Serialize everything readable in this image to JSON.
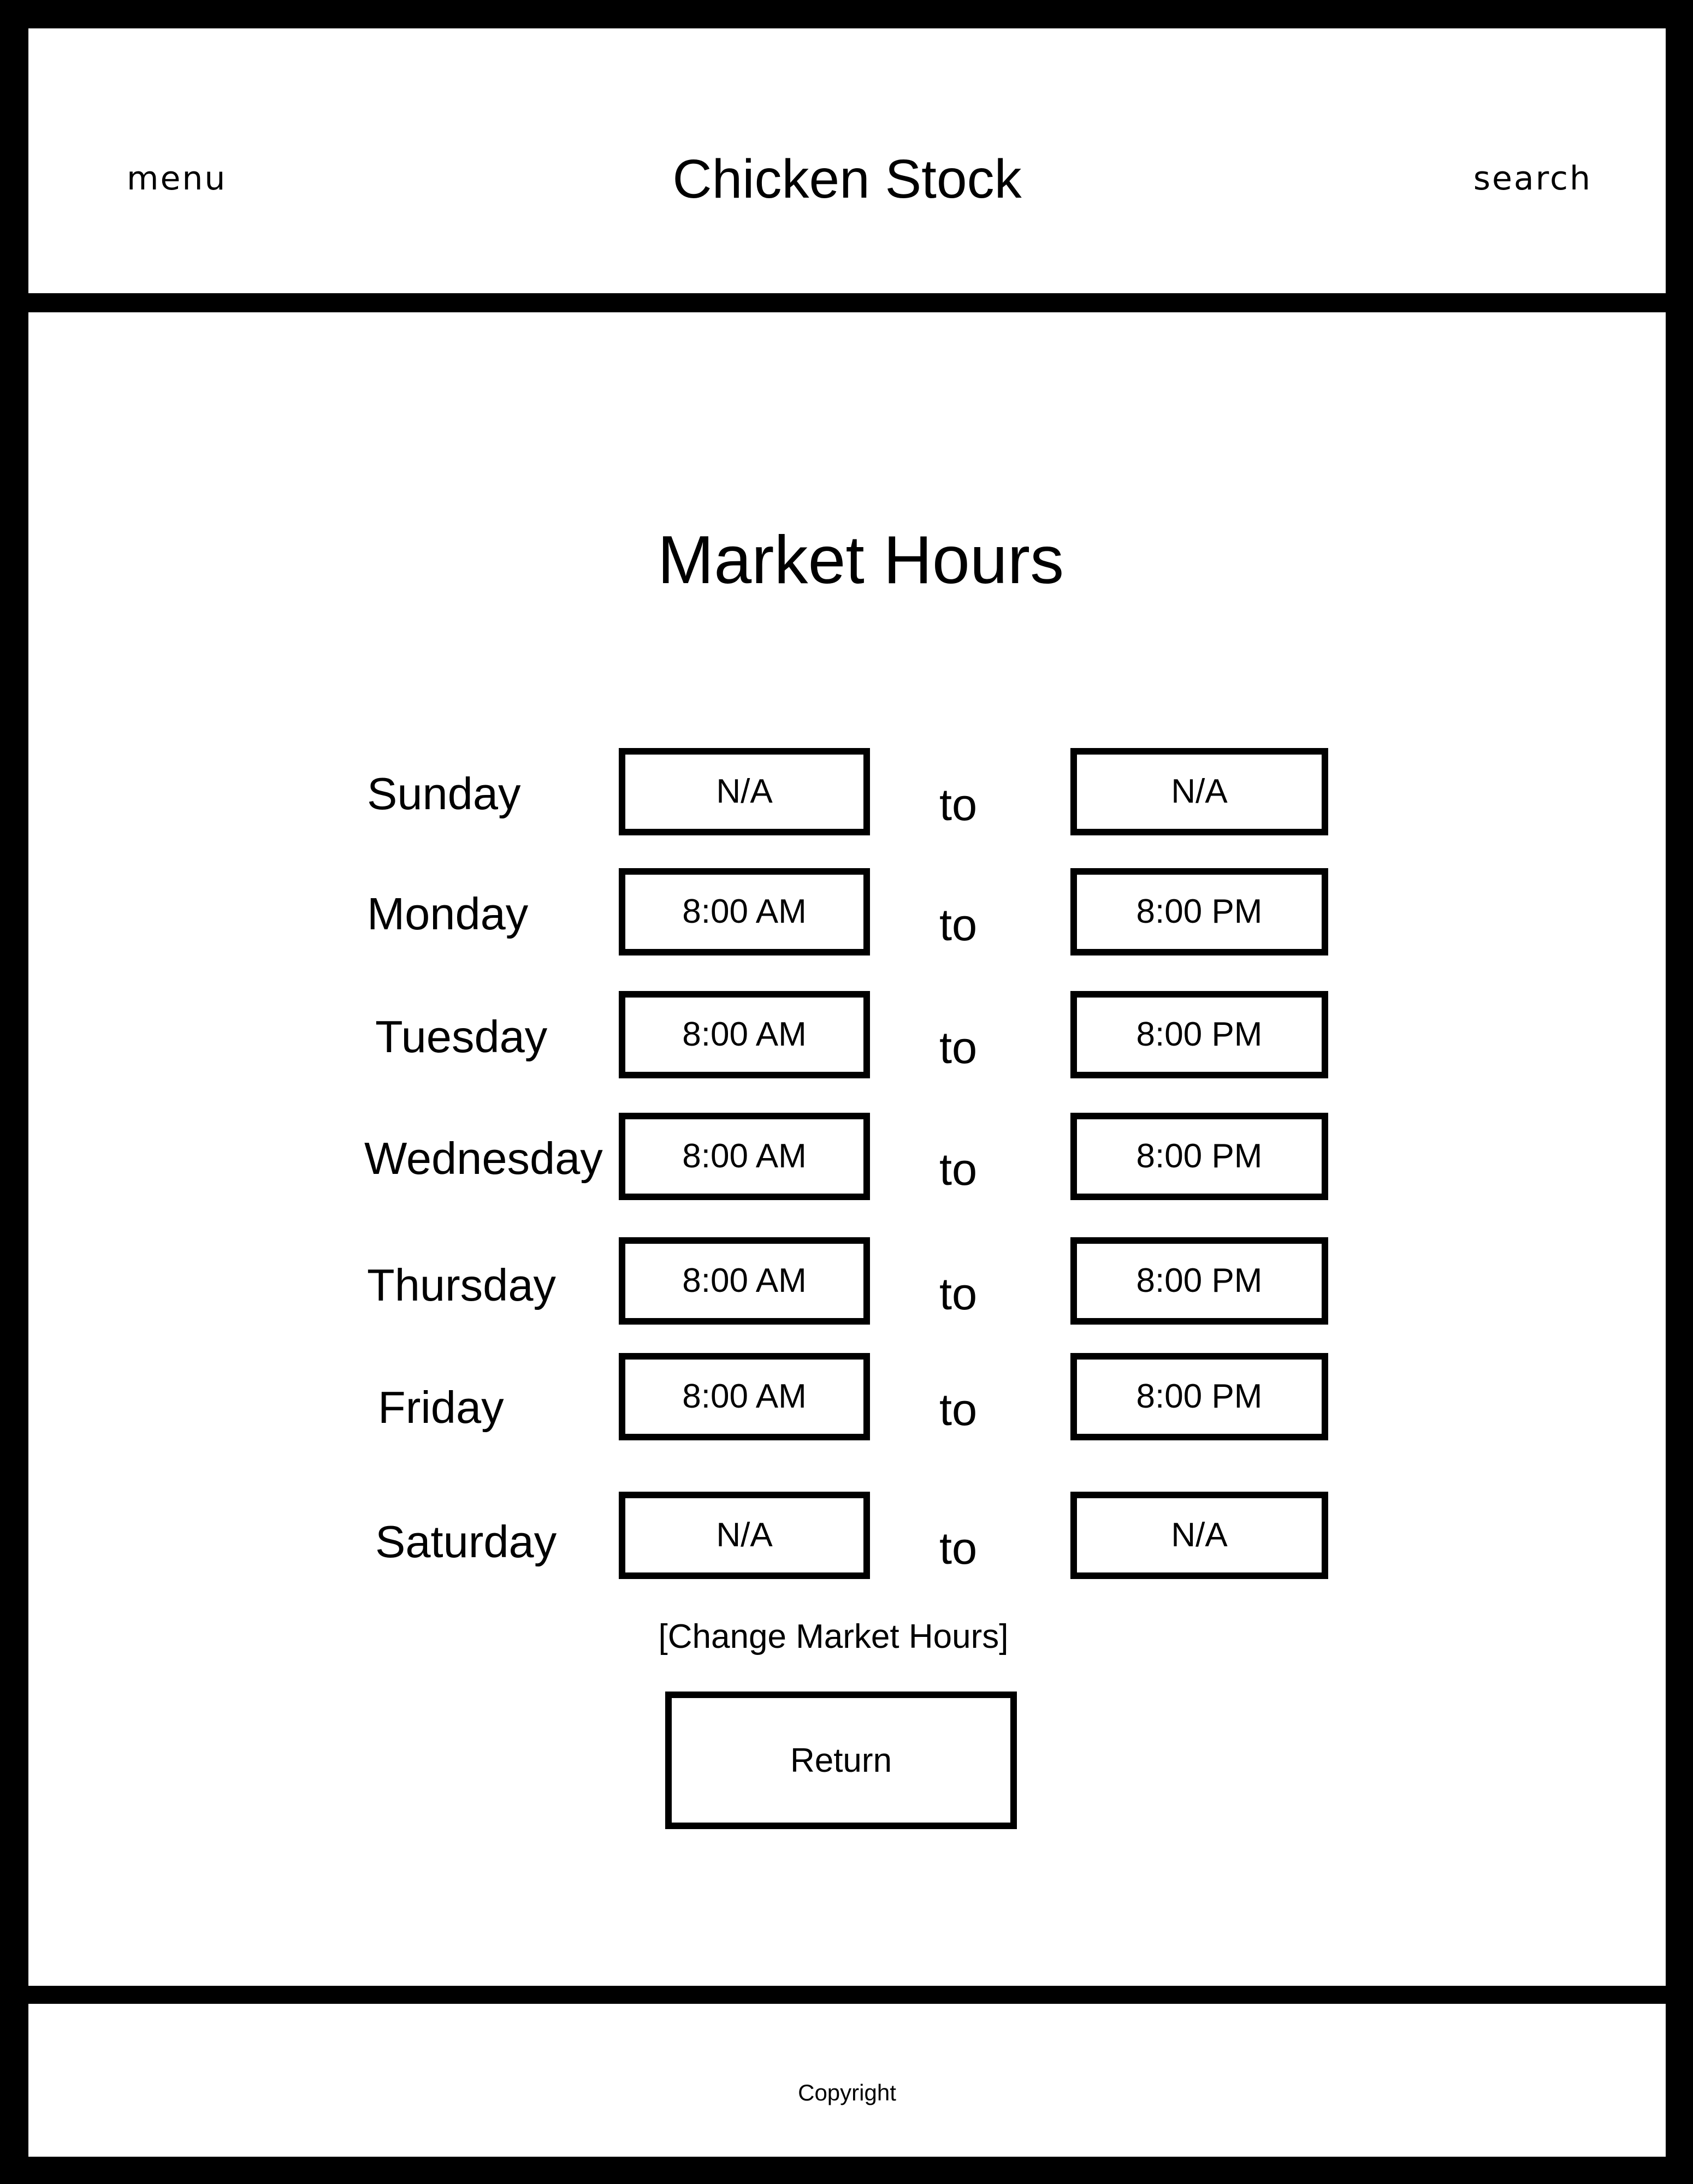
{
  "header": {
    "menu_label": "menu",
    "title": "Chicken Stock",
    "search_label": "search"
  },
  "main": {
    "page_title": "Market Hours",
    "separator_label": "to",
    "days": [
      {
        "day": "Sunday",
        "open": "N/A",
        "close": "N/A"
      },
      {
        "day": "Monday",
        "open": "8:00 AM",
        "close": "8:00 PM"
      },
      {
        "day": "Tuesday",
        "open": "8:00 AM",
        "close": "8:00 PM"
      },
      {
        "day": "Wednesday",
        "open": "8:00 AM",
        "close": "8:00 PM"
      },
      {
        "day": "Thursday",
        "open": "8:00 AM",
        "close": "8:00 PM"
      },
      {
        "day": "Friday",
        "open": "8:00 AM",
        "close": "8:00 PM"
      },
      {
        "day": "Saturday",
        "open": "N/A",
        "close": "N/A"
      }
    ],
    "change_hours_label": "[Change Market Hours]",
    "return_label": "Return"
  },
  "footer": {
    "copyright": "Copyright"
  }
}
